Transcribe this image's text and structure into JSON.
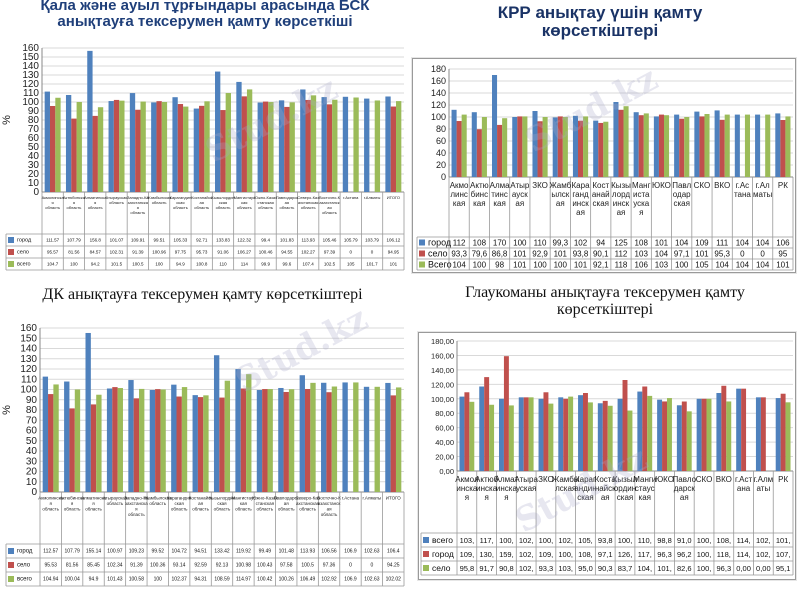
{
  "watermark": "Stud.kz",
  "colors": {
    "series1": "#4f81bd",
    "series2": "#c0504d",
    "series3": "#9bbb59"
  },
  "chart_data": [
    {
      "id": "bsk",
      "type": "bar",
      "title": "Қала және ауыл тұрғындары арасында БСК анықтауға тексерумен қамту көрсеткіші",
      "ylabel": "%",
      "ylim": [
        0,
        160
      ],
      "yticks": [
        0,
        10,
        20,
        30,
        40,
        50,
        60,
        70,
        80,
        90,
        100,
        110,
        120,
        130,
        140,
        150,
        160
      ],
      "categories": [
        "Акмолинская область",
        "Актюбинская область",
        "Алматинская область",
        "Атырауская область",
        "Западно-Казахстанская область",
        "Жамбылская область",
        "Карагандинская область",
        "Костанайская область",
        "Кызылординская область",
        "Мангистауская область",
        "Южно-Казахстанская область",
        "Павлодарская область",
        "Северо-Казахстанская область",
        "Восточно-Казахстанская область",
        "г.Астана",
        "г.Алматы",
        "ИТОГО"
      ],
      "series": [
        {
          "name": "город",
          "values": [
            111.57,
            107.79,
            156.8,
            101.07,
            109.91,
            99.51,
            105.33,
            92.71,
            133.83,
            122.32,
            99.4,
            101.83,
            113.93,
            105.46,
            105.79,
            103.79,
            106.12
          ]
        },
        {
          "name": "село",
          "values": [
            95.57,
            81.56,
            84.57,
            102.31,
            91.39,
            100.96,
            97.75,
            95.73,
            91.06,
            106.27,
            100.46,
            94.55,
            102.27,
            97.39,
            0,
            0,
            94.95
          ]
        },
        {
          "name": "всего",
          "values": [
            104.7,
            100.0,
            94.2,
            101.5,
            100.5,
            100.0,
            94.9,
            100.8,
            110.0,
            114.0,
            99.9,
            99.6,
            107.4,
            102.5,
            105.0,
            101.7,
            101.0
          ]
        }
      ]
    },
    {
      "id": "krr",
      "type": "bar",
      "title": "КРР анықтау үшін қамту көрсеткіштері",
      "ylabel": "",
      "ylim": [
        0,
        180
      ],
      "yticks": [
        0,
        20,
        40,
        60,
        80,
        100,
        120,
        140,
        160,
        180
      ],
      "categories": [
        "Акмолинская",
        "Актюбинская",
        "Алматинская",
        "Атырауская",
        "ЗКО",
        "Жамбылская",
        "Карагандинская",
        "Костанайская",
        "Кызылординская",
        "Мангистауская",
        "ЮКО",
        "Павлодарская",
        "СКО",
        "ВКО",
        "г.Астана",
        "г.Алматы",
        "РК"
      ],
      "series": [
        {
          "name": "город",
          "values": [
            112,
            108,
            170,
            100,
            110,
            99.3,
            102,
            94,
            125,
            108,
            101,
            104,
            109,
            111,
            104,
            104,
            106
          ],
          "labels": [
            "112",
            "108",
            "170",
            "100",
            "110",
            "99,3",
            "102",
            "94",
            "125",
            "108",
            "101",
            "104",
            "109",
            "111",
            "104",
            "104",
            "106"
          ]
        },
        {
          "name": "село",
          "values": [
            93.3,
            79.6,
            86.8,
            101,
            92.9,
            101,
            93.8,
            90.1,
            112,
            103,
            104,
            97.1,
            101,
            95.3,
            0,
            0,
            95
          ],
          "labels": [
            "93,3",
            "79,6",
            "86,8",
            "101",
            "92,9",
            "101",
            "93,8",
            "90,1",
            "112",
            "103",
            "104",
            "97,1",
            "101",
            "95,3",
            "0",
            "0",
            "95"
          ]
        },
        {
          "name": "Всего",
          "values": [
            104,
            100,
            98,
            101,
            100,
            100,
            101,
            92.1,
            118,
            106,
            103,
            100,
            105,
            104,
            104,
            104,
            101
          ],
          "labels": [
            "104",
            "100",
            "98",
            "101",
            "100",
            "100",
            "101",
            "92,1",
            "118",
            "106",
            "103",
            "100",
            "105",
            "104",
            "104",
            "104",
            "101"
          ]
        }
      ]
    },
    {
      "id": "dk",
      "type": "bar",
      "title": "ДК анықтауға тексерумен қамту көрсеткіштері",
      "ylabel": "%",
      "ylim": [
        0,
        160
      ],
      "yticks": [
        0,
        10,
        20,
        30,
        40,
        50,
        60,
        70,
        80,
        90,
        100,
        110,
        120,
        130,
        140,
        150,
        160
      ],
      "categories": [
        "Акмолинская область",
        "Актюбинская область",
        "Алматинская область",
        "Атырауская область",
        "Западно-Казахстанская область",
        "Жамбылская область",
        "Карагандинская область",
        "Костанайская область",
        "Кызылординская область",
        "Мангистауская область",
        "Южно-Казахстанская область",
        "Павлодарская область",
        "Северо-Казахстанская область",
        "Восточно-Казахстанская область",
        "г.Астана",
        "г.Алматы",
        "ИТОГО"
      ],
      "series": [
        {
          "name": "город",
          "values": [
            112.57,
            107.79,
            155.14,
            100.97,
            109.23,
            99.52,
            104.72,
            94.51,
            133.42,
            119.92,
            99.49,
            101.48,
            113.93,
            106.56,
            106.9,
            102.63,
            106.4
          ]
        },
        {
          "name": "село",
          "values": [
            95.53,
            81.56,
            85.45,
            102.34,
            91.39,
            100.36,
            93.14,
            92.59,
            92.13,
            100.98,
            100.43,
            97.58,
            100.5,
            97.36,
            0,
            0,
            94.25
          ]
        },
        {
          "name": "всего",
          "values": [
            104.94,
            100.04,
            94.9,
            101.43,
            100.58,
            100.0,
            102.37,
            94.31,
            108.59,
            114.97,
            100.42,
            100.26,
            106.49,
            102.92,
            106.9,
            102.63,
            102.02
          ]
        }
      ]
    },
    {
      "id": "glaucoma",
      "type": "bar",
      "title": "Глаукоманы анықтауға тексерумен қамту көрсеткіштері",
      "ylabel": "",
      "ylim": [
        0,
        180
      ],
      "yticks": [
        "0,00",
        "20,00",
        "40,00",
        "60,00",
        "80,00",
        "100,00",
        "120,00",
        "140,00",
        "160,00",
        "180,00"
      ],
      "categories": [
        "Акмолинская",
        "Актюбинская",
        "Алматинская",
        "Атырауская",
        "ЗКО",
        "Жамбылская",
        "Карагандинская",
        "Костанайская",
        "Кызылординская",
        "Мангистауская",
        "ЮКО",
        "Павлодарская",
        "СКО",
        "ВКО",
        "г.Астана",
        "г.Алматы",
        "РК"
      ],
      "series": [
        {
          "name": "всего",
          "values": [
            103,
            117,
            100,
            102,
            100,
            102,
            105,
            93.8,
            100,
            110,
            98.8,
            91,
            100,
            108,
            114,
            102,
            101
          ],
          "labels": [
            "103,",
            "117,",
            "100,",
            "102,",
            "100,",
            "102,",
            "105,",
            "93,8",
            "100,",
            "110,",
            "98,8",
            "91,0",
            "100,",
            "108,",
            "114,",
            "102,",
            "101,"
          ]
        },
        {
          "name": "город",
          "values": [
            109,
            130,
            159,
            102,
            109,
            100,
            108,
            97.1,
            126,
            117,
            96.3,
            96.2,
            100,
            118,
            114,
            102,
            107
          ],
          "labels": [
            "109,",
            "130,",
            "159,",
            "102,",
            "109,",
            "100,",
            "108,",
            "97,1",
            "126,",
            "117,",
            "96,3",
            "96,2",
            "100,",
            "118,",
            "114,",
            "102,",
            "107,"
          ]
        },
        {
          "name": "село",
          "values": [
            95.8,
            91.7,
            90.8,
            102,
            93.3,
            103,
            95,
            90.3,
            83.7,
            104,
            101,
            82.6,
            100,
            96.3,
            0,
            0,
            95.1
          ],
          "labels": [
            "95,8",
            "91,7",
            "90,8",
            "102,",
            "93,3",
            "103,",
            "95,0",
            "90,3",
            "83,7",
            "104,",
            "101,",
            "82,6",
            "100,",
            "96,3",
            "0,00",
            "0,00",
            "95,1"
          ]
        }
      ]
    }
  ]
}
